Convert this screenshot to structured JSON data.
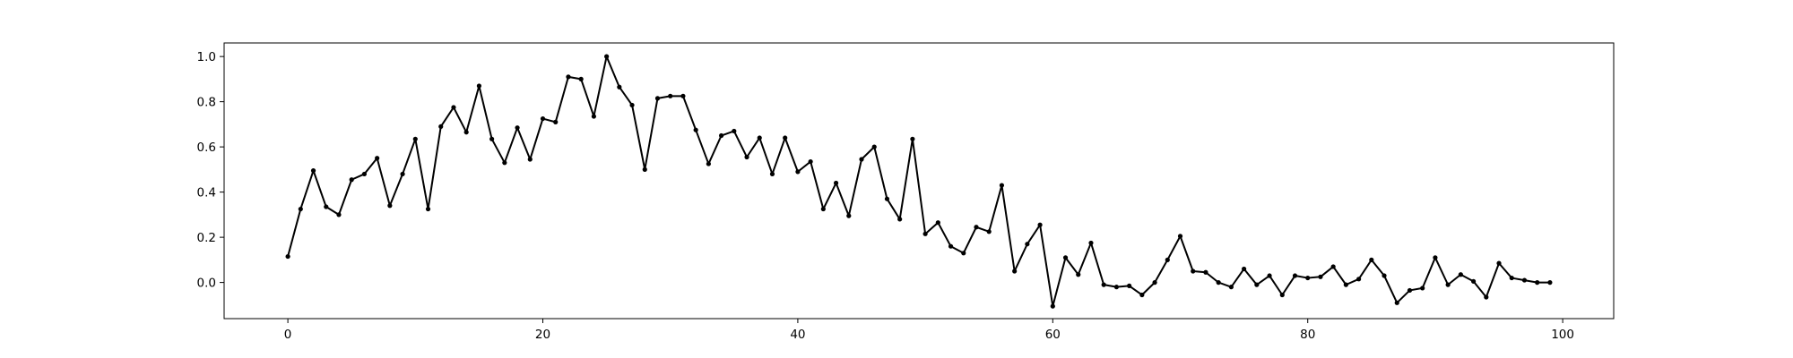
{
  "chart_data": {
    "type": "line",
    "title": "",
    "xlabel": "",
    "ylabel": "",
    "xlim": [
      -5,
      104
    ],
    "ylim": [
      -0.16,
      1.06
    ],
    "grid": false,
    "legend": "none",
    "colors": {
      "line": "#000000",
      "marker": "#000000",
      "axes": "#000000",
      "background": "#ffffff"
    },
    "marker": "point",
    "x_ticks": [
      {
        "value": 0,
        "label": "0"
      },
      {
        "value": 20,
        "label": "20"
      },
      {
        "value": 40,
        "label": "40"
      },
      {
        "value": 60,
        "label": "60"
      },
      {
        "value": 80,
        "label": "80"
      },
      {
        "value": 100,
        "label": "100"
      }
    ],
    "y_ticks": [
      {
        "value": 0.0,
        "label": "0.0"
      },
      {
        "value": 0.2,
        "label": "0.2"
      },
      {
        "value": 0.4,
        "label": "0.4"
      },
      {
        "value": 0.6,
        "label": "0.6"
      },
      {
        "value": 0.8,
        "label": "0.8"
      },
      {
        "value": 1.0,
        "label": "1.0"
      }
    ],
    "series": [
      {
        "x": [
          0,
          1,
          2,
          3,
          4,
          5,
          6,
          7,
          8,
          9,
          10,
          11,
          12,
          13,
          14,
          15,
          16,
          17,
          18,
          19,
          20,
          21,
          22,
          23,
          24,
          25,
          26,
          27,
          28,
          29,
          30,
          31,
          32,
          33,
          34,
          35,
          36,
          37,
          38,
          39,
          40,
          41,
          42,
          43,
          44,
          45,
          46,
          47,
          48,
          49,
          50,
          51,
          52,
          53,
          54,
          55,
          56,
          57,
          58,
          59,
          60,
          61,
          62,
          63,
          64,
          65,
          66,
          67,
          68,
          69,
          70,
          71,
          72,
          73,
          74,
          75,
          76,
          77,
          78,
          79,
          80,
          81,
          82,
          83,
          84,
          85,
          86,
          87,
          88,
          89,
          90,
          91,
          92,
          93,
          94,
          95,
          96,
          97,
          98,
          99
        ],
        "y": [
          0.115,
          0.325,
          0.495,
          0.335,
          0.3,
          0.455,
          0.48,
          0.55,
          0.34,
          0.48,
          0.635,
          0.325,
          0.69,
          0.775,
          0.665,
          0.87,
          0.635,
          0.53,
          0.685,
          0.545,
          0.725,
          0.71,
          0.91,
          0.9,
          0.735,
          1.0,
          0.865,
          0.785,
          0.5,
          0.815,
          0.825,
          0.825,
          0.675,
          0.525,
          0.65,
          0.67,
          0.555,
          0.64,
          0.48,
          0.64,
          0.49,
          0.535,
          0.325,
          0.44,
          0.295,
          0.545,
          0.6,
          0.37,
          0.28,
          0.635,
          0.215,
          0.265,
          0.16,
          0.13,
          0.245,
          0.225,
          0.43,
          0.05,
          0.17,
          0.255,
          -0.105,
          0.11,
          0.035,
          0.175,
          -0.01,
          -0.02,
          -0.015,
          -0.055,
          0.0,
          0.1,
          0.205,
          0.05,
          0.045,
          0.0,
          -0.02,
          0.06,
          -0.01,
          0.03,
          -0.055,
          0.03,
          0.02,
          0.025,
          0.07,
          -0.01,
          0.015,
          0.1,
          0.03,
          -0.09,
          -0.035,
          -0.025,
          0.11,
          -0.01,
          0.035,
          0.005,
          -0.065,
          0.085,
          0.02,
          0.01,
          0.0,
          0.0
        ]
      }
    ]
  }
}
